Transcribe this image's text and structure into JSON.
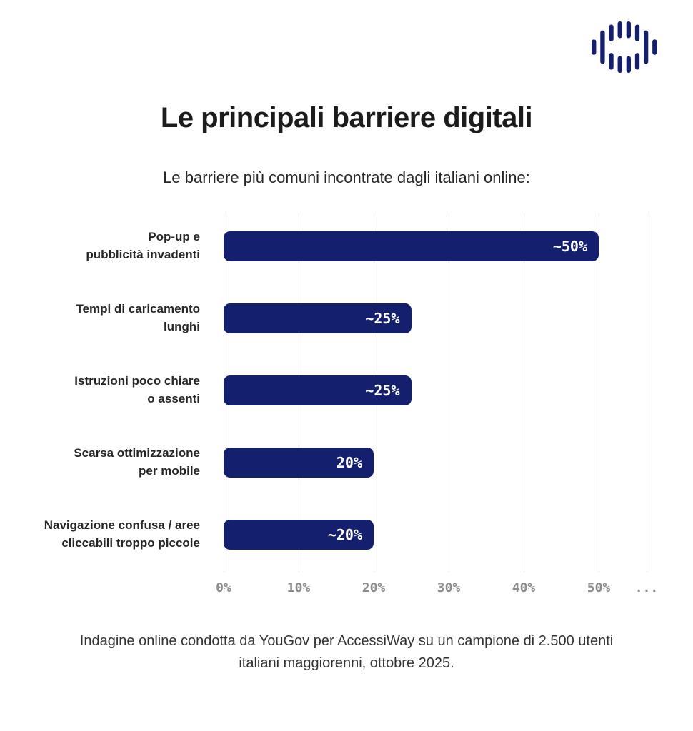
{
  "theme": {
    "navy": "#14206e",
    "grid": "#e4e4e4",
    "tick": "#8d8d8d"
  },
  "logo": {
    "name": "AccessiWay logo",
    "color": "#1b2272"
  },
  "header": {
    "title": "Le principali barriere digitali",
    "subtitle": "Le barriere più comuni incontrate dagli italiani online:"
  },
  "chart_data": {
    "type": "bar",
    "orientation": "horizontal",
    "title": "Le principali barriere digitali",
    "subtitle": "Le barriere più comuni incontrate dagli italiani online:",
    "categories": [
      "Pop-up e\npubblicità invadenti",
      "Tempi di caricamento\nlunghi",
      "Istruzioni poco chiare\no assenti",
      "Scarsa ottimizzazione\nper mobile",
      "Navigazione confusa / aree\ncliccabili troppo piccole"
    ],
    "values": [
      50,
      25,
      25,
      20,
      20
    ],
    "value_labels": [
      "~50%",
      "~25%",
      "~25%",
      "20%",
      "~20%"
    ],
    "x_ticks": [
      "0%",
      "10%",
      "20%",
      "30%",
      "40%",
      "50%",
      "..."
    ],
    "xlabel": "",
    "ylabel": "",
    "xlim": [
      0,
      57
    ],
    "grid": true,
    "legend": "none",
    "bar_color": "#14206e",
    "value_label_color": "#ffffff"
  },
  "footer": {
    "text": "Indagine online condotta da YouGov per AccessiWay su un campione di 2.500 utenti italiani maggiorenni, ottobre 2025."
  }
}
